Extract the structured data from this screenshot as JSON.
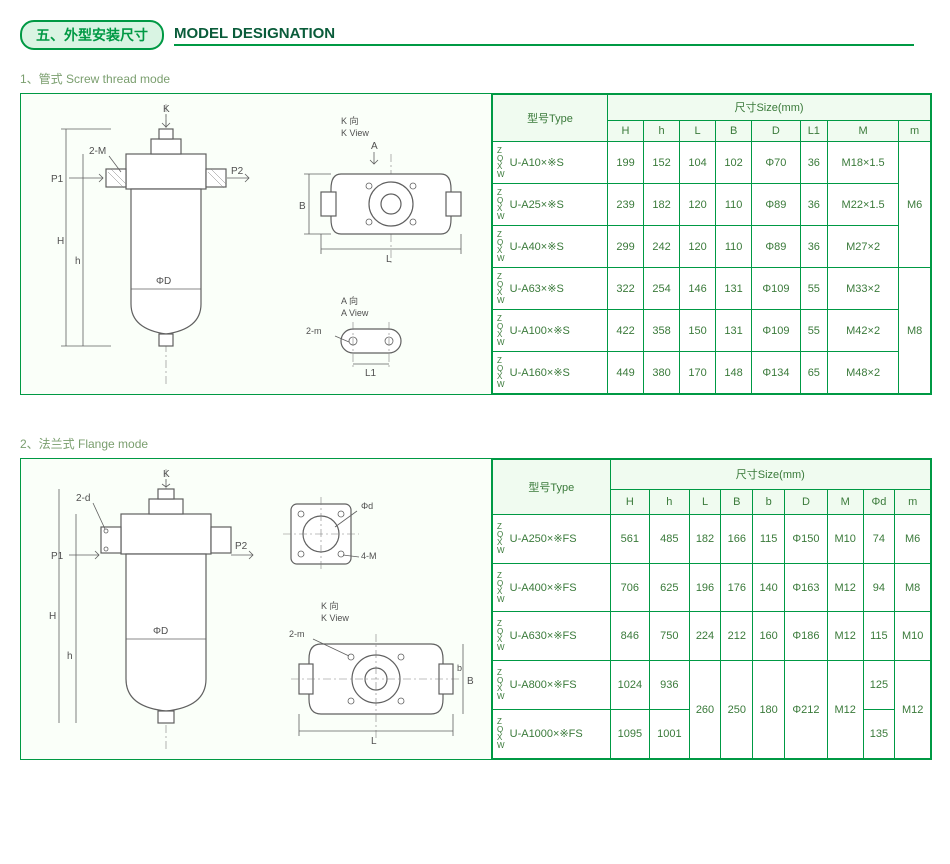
{
  "title_badge": "五、外型安装尺寸",
  "title_main": "MODEL DESIGNATION",
  "section1": {
    "label": "1、管式  Screw thread mode",
    "diagram_labels": {
      "K": "K",
      "Kv": "K 向",
      "Kv_en": "K View",
      "A": "A",
      "Av": "A 向",
      "Av_en": "A View",
      "P1": "P1",
      "P2": "P2",
      "twoM": "2-M",
      "twom": "2-m",
      "H": "H",
      "h": "h",
      "L": "L",
      "B": "B",
      "L1": "L1",
      "D": "ΦD"
    },
    "headers": {
      "type": "型号Type",
      "size": "尺寸Size(mm)",
      "cols": [
        "H",
        "h",
        "L",
        "B",
        "D",
        "L1",
        "M",
        "m"
      ]
    },
    "rows": [
      {
        "type": "U-A10×※S",
        "H": "199",
        "h": "152",
        "L": "104",
        "B": "102",
        "D": "Φ70",
        "L1": "36",
        "M": "M18×1.5"
      },
      {
        "type": "U-A25×※S",
        "H": "239",
        "h": "182",
        "L": "120",
        "B": "110",
        "D": "Φ89",
        "L1": "36",
        "M": "M22×1.5"
      },
      {
        "type": "U-A40×※S",
        "H": "299",
        "h": "242",
        "L": "120",
        "B": "110",
        "D": "Φ89",
        "L1": "36",
        "M": "M27×2"
      },
      {
        "type": "U-A63×※S",
        "H": "322",
        "h": "254",
        "L": "146",
        "B": "131",
        "D": "Φ109",
        "L1": "55",
        "M": "M33×2"
      },
      {
        "type": "U-A100×※S",
        "H": "422",
        "h": "358",
        "L": "150",
        "B": "131",
        "D": "Φ109",
        "L1": "55",
        "M": "M42×2"
      },
      {
        "type": "U-A160×※S",
        "H": "449",
        "h": "380",
        "L": "170",
        "B": "148",
        "D": "Φ134",
        "L1": "65",
        "M": "M48×2"
      }
    ],
    "m_groups": [
      "M6",
      "M8"
    ]
  },
  "section2": {
    "label": "2、法兰式  Flange mode",
    "diagram_labels": {
      "K": "K",
      "Kv": "K 向",
      "Kv_en": "K View",
      "P1": "P1",
      "P2": "P2",
      "twod": "2-d",
      "fourM": "4-M",
      "twom": "2-m",
      "H": "H",
      "h": "h",
      "L": "L",
      "B": "B",
      "b": "b",
      "D": "ΦD",
      "Phid": "Φd"
    },
    "headers": {
      "type": "型号Type",
      "size": "尺寸Size(mm)",
      "cols": [
        "H",
        "h",
        "L",
        "B",
        "b",
        "D",
        "M",
        "Φd",
        "m"
      ]
    },
    "rows": [
      {
        "type": "U-A250×※FS",
        "H": "561",
        "h": "485",
        "L": "182",
        "B": "166",
        "b": "115",
        "D": "Φ150",
        "M": "M10",
        "Phid": "74",
        "m": "M6"
      },
      {
        "type": "U-A400×※FS",
        "H": "706",
        "h": "625",
        "L": "196",
        "B": "176",
        "b": "140",
        "D": "Φ163",
        "M": "M12",
        "Phid": "94",
        "m": "M8"
      },
      {
        "type": "U-A630×※FS",
        "H": "846",
        "h": "750",
        "L": "224",
        "B": "212",
        "b": "160",
        "D": "Φ186",
        "M": "M12",
        "Phid": "115",
        "m": "M10"
      },
      {
        "type": "U-A800×※FS",
        "H": "1024",
        "h": "936",
        "Phid": "125"
      },
      {
        "type": "U-A1000×※FS",
        "H": "1095",
        "h": "1001",
        "Phid": "135"
      }
    ],
    "merged": {
      "L": "260",
      "B": "250",
      "b": "180",
      "D": "Φ212",
      "M": "M12",
      "m": "M12"
    }
  },
  "prefix_letters": [
    "Z",
    "Q",
    "X",
    "W"
  ],
  "colors": {
    "border": "#009944",
    "text": "#3a7a3a"
  }
}
